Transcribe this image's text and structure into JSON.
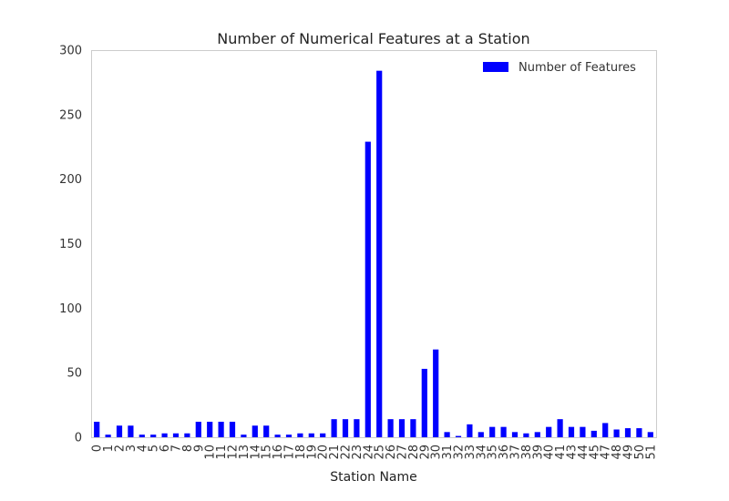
{
  "chart_data": {
    "type": "bar",
    "title": "Number of Numerical Features at a Station",
    "xlabel": "Station Name",
    "ylabel": "",
    "ylim": [
      0,
      300
    ],
    "yticks": [
      0,
      50,
      100,
      150,
      200,
      250,
      300
    ],
    "grid": false,
    "legend_position": "top-right",
    "categories": [
      "0",
      "1",
      "2",
      "3",
      "4",
      "5",
      "6",
      "7",
      "8",
      "9",
      "10",
      "11",
      "12",
      "13",
      "14",
      "15",
      "16",
      "17",
      "18",
      "19",
      "20",
      "21",
      "22",
      "23",
      "24",
      "25",
      "26",
      "27",
      "28",
      "29",
      "30",
      "31",
      "32",
      "33",
      "34",
      "35",
      "36",
      "37",
      "38",
      "39",
      "40",
      "41",
      "43",
      "44",
      "45",
      "47",
      "48",
      "49",
      "50",
      "51"
    ],
    "series": [
      {
        "name": "Number of Features",
        "color": "#0000ff",
        "values": [
          12,
          2,
          9,
          9,
          2,
          2,
          3,
          3,
          3,
          12,
          12,
          12,
          12,
          2,
          9,
          9,
          2,
          2,
          3,
          3,
          3,
          14,
          14,
          14,
          229,
          284,
          14,
          14,
          14,
          53,
          68,
          4,
          1,
          10,
          4,
          8,
          8,
          4,
          3,
          4,
          8,
          14,
          8,
          8,
          5,
          11,
          6,
          7,
          7,
          4
        ]
      }
    ]
  }
}
